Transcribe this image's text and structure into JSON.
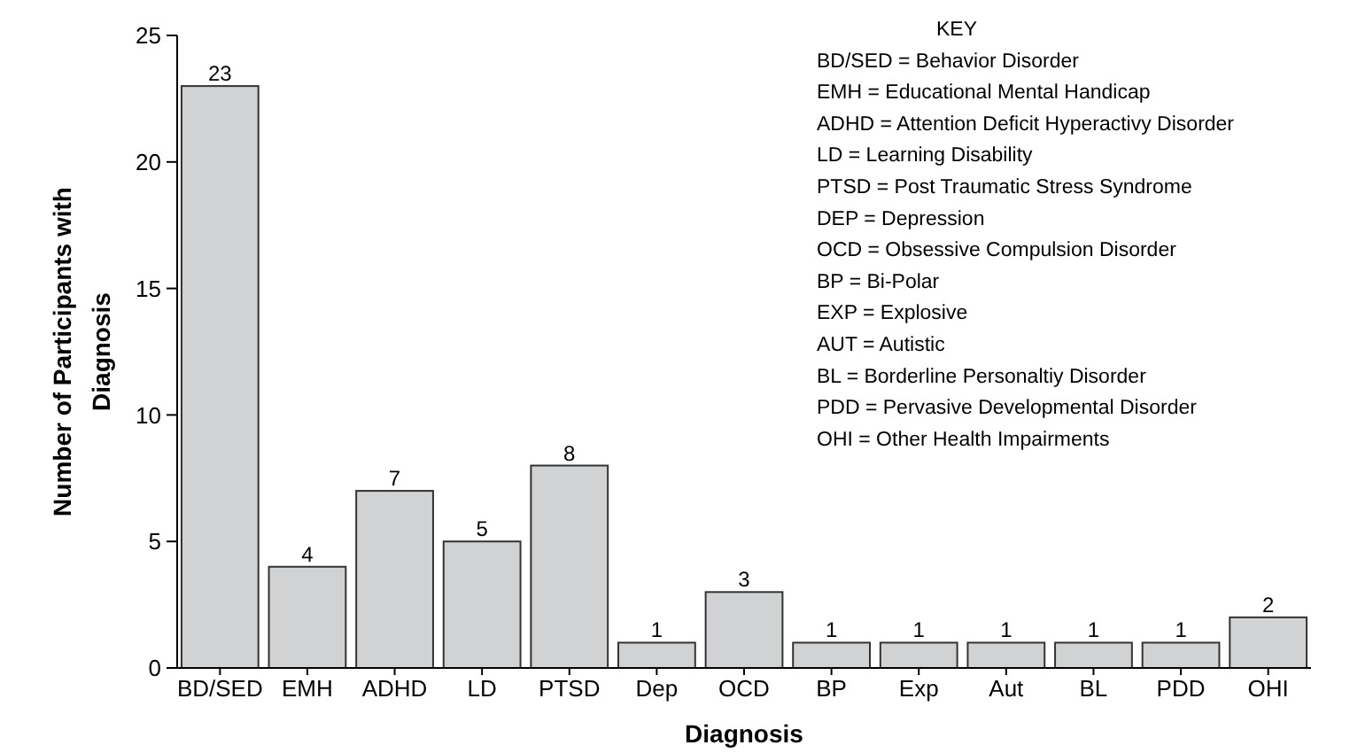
{
  "chart_data": {
    "type": "bar",
    "xlabel": "Diagnosis",
    "ylabel": "Number of Participants with Diagnosis",
    "categories": [
      "BD/SED",
      "EMH",
      "ADHD",
      "LD",
      "PTSD",
      "Dep",
      "OCD",
      "BP",
      "Exp",
      "Aut",
      "BL",
      "PDD",
      "OHI"
    ],
    "values": [
      23,
      4,
      7,
      5,
      8,
      1,
      3,
      1,
      1,
      1,
      1,
      1,
      2
    ],
    "color": "#d0d2d3",
    "data_labels": true,
    "ylim": [
      0,
      25
    ],
    "yticks": [
      0,
      5,
      10,
      15,
      20,
      25
    ],
    "grid": false,
    "annotations": [
      "KEY",
      "BD/SED = Behavior Disorder",
      "EMH =  Educational Mental Handicap",
      "ADHD = Attention Deficit Hyperactivy Disorder",
      "LD = Learning Disability",
      "PTSD = Post Traumatic Stress Syndrome",
      "DEP = Depression",
      "OCD = Obsessive Compulsion Disorder",
      "BP =  Bi-Polar",
      "EXP =  Explosive",
      "AUT = Autistic",
      "BL = Borderline Personaltiy Disorder",
      "PDD = Pervasive Developmental Disorder",
      "OHI = Other Health Impairments"
    ]
  }
}
